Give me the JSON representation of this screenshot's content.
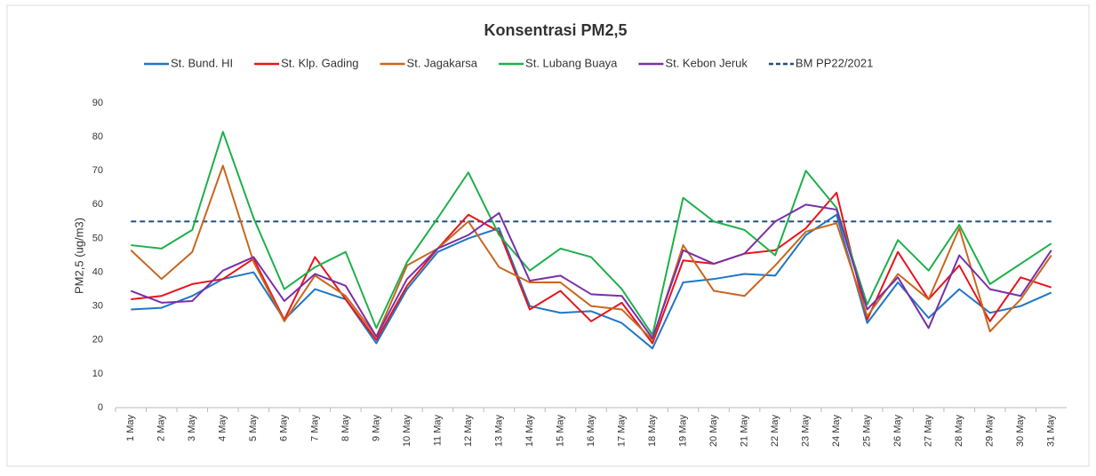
{
  "chart_data": {
    "type": "line",
    "title": "Konsentrasi PM2,5",
    "y_label": "PM2,5 (ug/m3)",
    "categories": [
      "1 May",
      "2 May",
      "3 May",
      "4 May",
      "5 May",
      "6 May",
      "7 May",
      "8 May",
      "9 May",
      "10 May",
      "11 May",
      "12 May",
      "13 May",
      "14 May",
      "15 May",
      "16 May",
      "17 May",
      "18 May",
      "19 May",
      "20 May",
      "21 May",
      "22 May",
      "23 May",
      "24 May",
      "25 May",
      "26 May",
      "27 May",
      "28 May",
      "29 May",
      "30 May",
      "31 May"
    ],
    "series": [
      {
        "name": "St. Bund. HI",
        "color": "#1f77c4",
        "values": [
          29,
          29.5,
          33,
          38,
          40,
          26,
          35,
          32,
          19,
          35,
          46,
          50,
          53,
          30,
          28,
          28.5,
          25,
          17.5,
          37,
          38,
          39.5,
          39,
          51,
          57,
          25,
          37,
          26.5,
          35,
          28,
          30,
          34
        ]
      },
      {
        "name": "St. Klp. Gading",
        "color": "#e8141c",
        "values": [
          32,
          33,
          36.5,
          38,
          44,
          26,
          44.5,
          32,
          20,
          36,
          47,
          57,
          52,
          29,
          34.5,
          25.5,
          31,
          19,
          43.5,
          42.5,
          45.5,
          46.5,
          53,
          63.5,
          26,
          46,
          32,
          42,
          25.5,
          38.5,
          35.5
        ]
      },
      {
        "name": "St. Jagakarsa",
        "color": "#c8671e",
        "values": [
          46.5,
          38,
          46,
          71.5,
          43,
          25.5,
          39,
          33,
          21,
          42,
          47,
          55,
          41.5,
          37,
          37,
          30,
          29,
          20,
          48,
          34.5,
          33,
          42,
          52,
          54.5,
          27,
          39.5,
          32,
          53,
          22.5,
          32,
          45
        ]
      },
      {
        "name": "St. Lubang Buaya",
        "color": "#1eb04a",
        "values": [
          48,
          47,
          52.5,
          81.5,
          56,
          35,
          41.5,
          46,
          23.5,
          43,
          56,
          69.5,
          51,
          40.5,
          47,
          44.5,
          35,
          21.5,
          62,
          55,
          52.5,
          45,
          70,
          59,
          30.5,
          49.5,
          40.5,
          54,
          36.5,
          42.5,
          48.5
        ]
      },
      {
        "name": "St. Kebon Jeruk",
        "color": "#7b2fa8",
        "values": [
          34.5,
          31,
          31.5,
          40.5,
          44.5,
          31.5,
          39.5,
          36,
          21,
          38,
          47,
          51,
          57.5,
          37.5,
          39,
          33.5,
          33,
          20.5,
          46.5,
          42.5,
          45.5,
          55,
          60,
          58.5,
          29,
          38.5,
          23.5,
          45,
          35,
          33,
          46.5
        ]
      }
    ],
    "reference_line": {
      "name": "BM PP22/2021",
      "value": 55,
      "color": "#1f4e79",
      "dashed": true
    },
    "ylim": [
      0,
      90
    ],
    "yticks": [
      0,
      10,
      20,
      30,
      40,
      50,
      60,
      70,
      80,
      90
    ],
    "grid": false
  }
}
